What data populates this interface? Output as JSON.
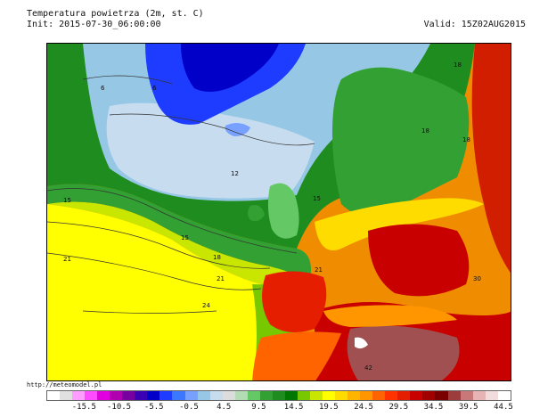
{
  "header": {
    "title": "Temperatura powietrza (2m, st. C)",
    "init": "Init: 2015-07-30_06:00:00",
    "valid": "Valid: 15Z02AUG2015"
  },
  "credit": "http://meteomodel.pl",
  "map_labels": {
    "l6a": "6",
    "l6b": "6",
    "l12": "12",
    "l15a": "15",
    "l15b": "15",
    "l15c": "15",
    "l18a": "18",
    "l18b": "18",
    "l18c": "18",
    "l18d": "18",
    "l21a": "21",
    "l21b": "21",
    "l21c": "21",
    "l24a": "24",
    "l30": "30",
    "l42": "42"
  },
  "legend": {
    "colors": [
      "#ffffff",
      "#e0e0e0",
      "#ff9cff",
      "#ff4cff",
      "#e000e0",
      "#b000b0",
      "#7800a0",
      "#3c00b4",
      "#0000c8",
      "#1e3cff",
      "#3c78ff",
      "#78a0ff",
      "#96c8e6",
      "#c8dcf0",
      "#dcdcdc",
      "#b4dcb4",
      "#64c864",
      "#32a032",
      "#1e8c1e",
      "#007800",
      "#78c800",
      "#c8e600",
      "#ffff00",
      "#ffdc00",
      "#ffb400",
      "#ff9600",
      "#ff6400",
      "#ff3200",
      "#e61e00",
      "#c80000",
      "#a00000",
      "#7a0000",
      "#9c3c3c",
      "#c87878",
      "#e6b4b4",
      "#f0dcdc",
      "#ffffff"
    ],
    "ticks": [
      "-15.5",
      "-10.5",
      "-5.5",
      "-0.5",
      "4.5",
      "9.5",
      "14.5",
      "19.5",
      "24.5",
      "29.5",
      "34.5",
      "39.5",
      "44.5"
    ]
  }
}
